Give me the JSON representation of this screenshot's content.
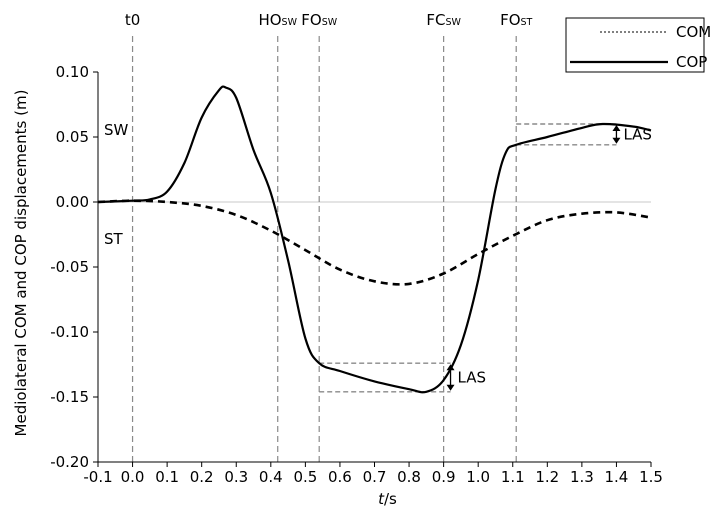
{
  "chart_data": {
    "type": "line",
    "xlabel": "t/s",
    "xlabel_italic_part": "t",
    "xlabel_unit_part": "/s",
    "ylabel": "Mediolateral COM and COP displacements (m)",
    "xlim": [
      -0.1,
      1.5
    ],
    "ylim": [
      -0.2,
      0.1
    ],
    "x_ticks": [
      -0.1,
      0.0,
      0.1,
      0.2,
      0.3,
      0.4,
      0.5,
      0.6,
      0.7,
      0.8,
      0.9,
      1.0,
      1.1,
      1.2,
      1.3,
      1.4,
      1.5
    ],
    "x_tick_labels": [
      "-0.1",
      "0.0",
      "0.1",
      "0.2",
      "0.3",
      "0.4",
      "0.5",
      "0.6",
      "0.7",
      "0.8",
      "0.9",
      "1.0",
      "1.1",
      "1.2",
      "1.3",
      "1.4",
      "1.5"
    ],
    "y_ticks": [
      0.1,
      0.05,
      0.0,
      -0.05,
      -0.1,
      -0.15,
      -0.2
    ],
    "y_tick_labels": [
      "0.10",
      "0.05",
      "0.00",
      "-0.05",
      "-0.10",
      "-0.15",
      "-0.20"
    ],
    "legend_placement": "top-right",
    "series": [
      {
        "name": "COM",
        "style": "dashed",
        "x": [
          -0.1,
          0.0,
          0.1,
          0.2,
          0.3,
          0.4,
          0.5,
          0.6,
          0.7,
          0.8,
          0.9,
          1.0,
          1.1,
          1.2,
          1.3,
          1.4,
          1.5
        ],
        "y": [
          0.0,
          0.001,
          0.0,
          -0.003,
          -0.01,
          -0.022,
          -0.037,
          -0.052,
          -0.061,
          -0.063,
          -0.055,
          -0.04,
          -0.026,
          -0.014,
          -0.009,
          -0.008,
          -0.012
        ]
      },
      {
        "name": "COP",
        "style": "solid",
        "x": [
          -0.1,
          0.0,
          0.05,
          0.1,
          0.15,
          0.2,
          0.25,
          0.27,
          0.3,
          0.35,
          0.4,
          0.45,
          0.5,
          0.54,
          0.6,
          0.7,
          0.8,
          0.85,
          0.9,
          0.95,
          1.0,
          1.05,
          1.08,
          1.11,
          1.2,
          1.3,
          1.36,
          1.45,
          1.5
        ],
        "y": [
          0.0,
          0.001,
          0.002,
          0.008,
          0.03,
          0.065,
          0.086,
          0.088,
          0.08,
          0.04,
          0.007,
          -0.045,
          -0.105,
          -0.124,
          -0.13,
          -0.138,
          -0.144,
          -0.146,
          -0.137,
          -0.11,
          -0.06,
          0.01,
          0.038,
          0.044,
          0.05,
          0.057,
          0.06,
          0.058,
          0.055
        ]
      }
    ],
    "event_lines": [
      {
        "x": 0.0,
        "label": "t0",
        "sub": ""
      },
      {
        "x": 0.42,
        "label": "HO",
        "sub": "SW"
      },
      {
        "x": 0.54,
        "label": "FO",
        "sub": "SW"
      },
      {
        "x": 0.9,
        "label": "FC",
        "sub": "SW"
      },
      {
        "x": 1.11,
        "label": "FO",
        "sub": "ST"
      }
    ],
    "annotations": {
      "sw_label": "SW",
      "st_label": "ST",
      "las_label": "LAS",
      "las_top": {
        "x_from": 1.11,
        "x_to": 1.36,
        "y_high": 0.06,
        "y_low": 0.044,
        "arrow_x": 1.4
      },
      "las_bottom": {
        "x_from": 0.54,
        "x_to": 0.85,
        "y_high": -0.124,
        "y_low": -0.146,
        "arrow_x": 0.92
      }
    },
    "colors": {
      "lines": "#000000",
      "event_lines": "#8a8a8a",
      "zero_line": "#c8c8c8",
      "las_lines": "#8a8a8a"
    }
  }
}
